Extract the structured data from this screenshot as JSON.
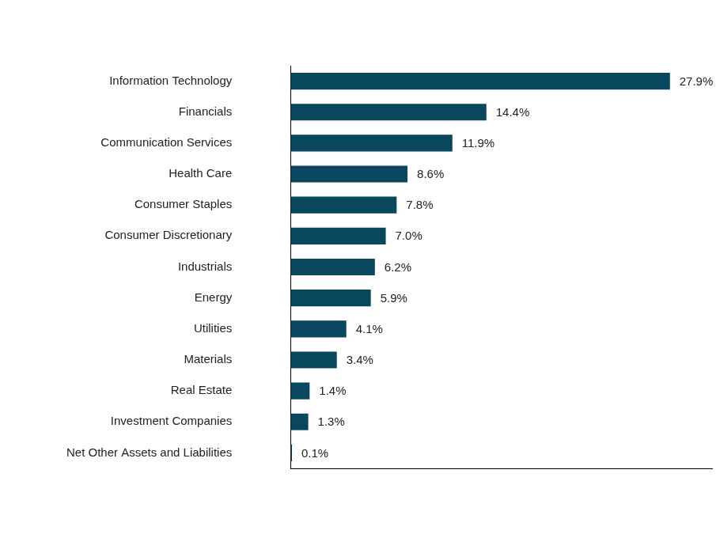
{
  "chart_data": {
    "type": "bar",
    "orientation": "horizontal",
    "categories": [
      "Information Technology",
      "Financials",
      "Communication Services",
      "Health Care",
      "Consumer Staples",
      "Consumer Discretionary",
      "Industrials",
      "Energy",
      "Utilities",
      "Materials",
      "Real Estate",
      "Investment Companies",
      "Net Other Assets and Liabilities"
    ],
    "values": [
      27.9,
      14.4,
      11.9,
      8.6,
      7.8,
      7.0,
      6.2,
      5.9,
      4.1,
      3.4,
      1.4,
      1.3,
      0.1
    ],
    "value_labels": [
      "27.9%",
      "14.4%",
      "11.9%",
      "8.6%",
      "7.8%",
      "7.0%",
      "6.2%",
      "5.9%",
      "4.1%",
      "3.4%",
      "1.4%",
      "1.3%",
      "0.1%"
    ],
    "color": "#08475e",
    "xlim": [
      0,
      31
    ],
    "grid": false,
    "data_labels": true,
    "tick_labels": "y"
  }
}
